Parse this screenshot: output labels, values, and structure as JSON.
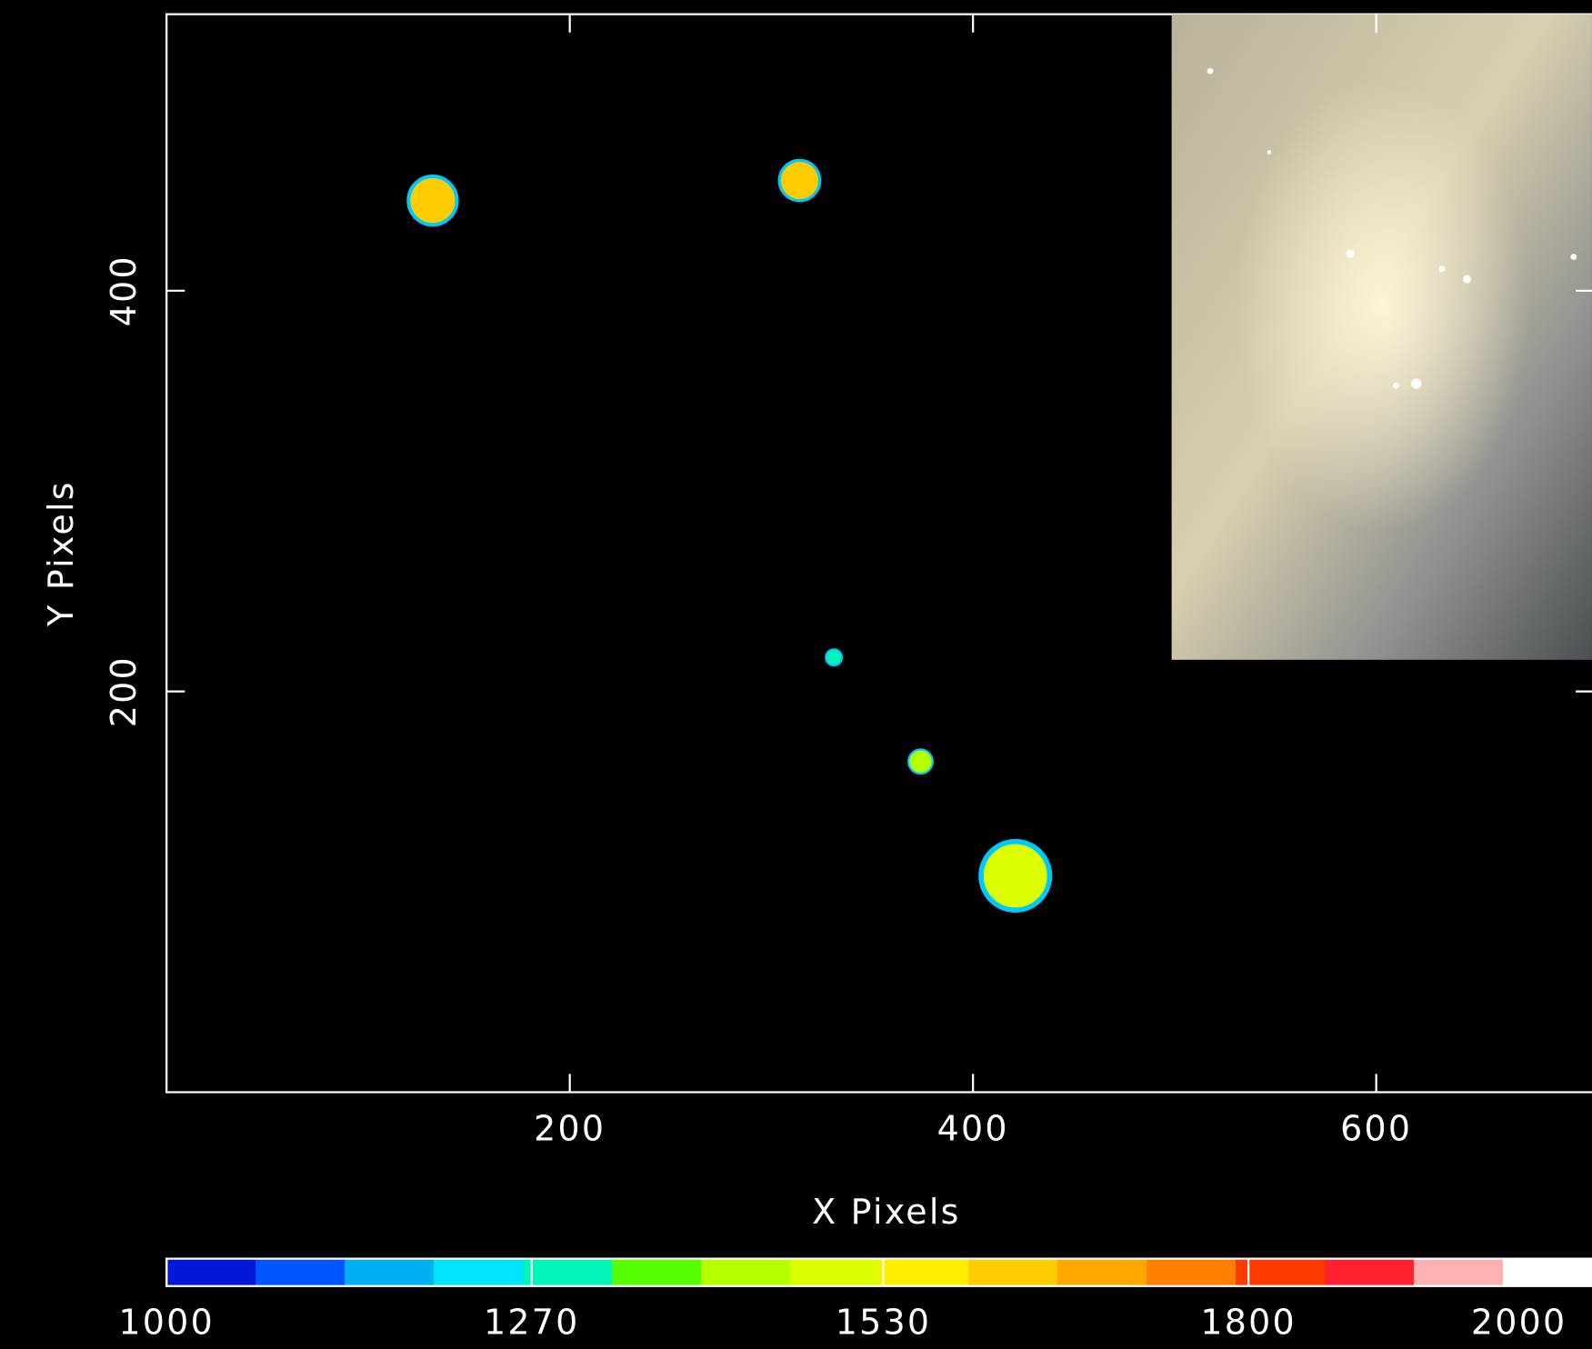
{
  "chart_data": {
    "type": "scatter",
    "x_label": "X Pixels",
    "y_label": "Y Pixels",
    "xlim": [
      0,
      708
    ],
    "ylim": [
      0,
      538
    ],
    "xticks": [
      200,
      400,
      600
    ],
    "yticks": [
      200,
      400
    ],
    "x": [
      132,
      314,
      331,
      374,
      421
    ],
    "y": [
      445,
      455,
      217,
      165,
      108
    ],
    "sizes": [
      12,
      10,
      4,
      6,
      17
    ],
    "temperatures": [
      1600,
      1640,
      1290,
      1440,
      1470
    ],
    "colorbar": {
      "lim": [
        1000,
        2054
      ],
      "ticks": [
        1000,
        1270,
        1530,
        1800,
        2000
      ],
      "colors": [
        "#0019d8",
        "#0055ff",
        "#00b0f0",
        "#00e5ff",
        "#00f5b8",
        "#55ff00",
        "#b4ff00",
        "#dcff00",
        "#ffee00",
        "#ffcc00",
        "#ffa800",
        "#ff8000",
        "#ff3a00",
        "#ff2030",
        "#ffb0b0",
        "#ffffff"
      ]
    }
  }
}
